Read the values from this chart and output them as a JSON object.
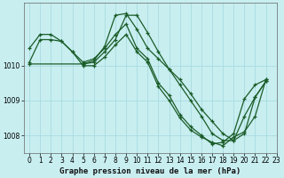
{
  "title": "Graphe pression niveau de la mer (hPa)",
  "bg_color": "#c8eef0",
  "grid_color": "#a8dce0",
  "line_color": "#1a5c28",
  "xlim": [
    -0.5,
    23
  ],
  "ylim": [
    1007.5,
    1011.8
  ],
  "yticks": [
    1008,
    1009,
    1010
  ],
  "xticks": [
    0,
    1,
    2,
    3,
    4,
    5,
    6,
    7,
    8,
    9,
    10,
    11,
    12,
    13,
    14,
    15,
    16,
    17,
    18,
    19,
    20,
    21,
    22,
    23
  ],
  "series": [
    {
      "x": [
        0,
        1,
        2,
        3,
        4,
        5,
        6,
        7,
        8,
        9,
        10,
        11,
        12,
        13,
        14,
        15,
        16,
        17,
        18,
        19,
        20,
        21,
        22
      ],
      "y": [
        1010.5,
        1010.9,
        1010.9,
        1010.7,
        1010.4,
        1010.1,
        1010.2,
        1010.5,
        1010.9,
        1011.2,
        1010.5,
        1010.2,
        1009.5,
        1009.15,
        1008.6,
        1008.25,
        1008.0,
        1007.75,
        1007.8,
        1008.05,
        1009.05,
        1009.45,
        1009.6
      ]
    },
    {
      "x": [
        0,
        1,
        2,
        3,
        4,
        5,
        6,
        7,
        8,
        9,
        10,
        11,
        12,
        13,
        14,
        15,
        16,
        17,
        18,
        19,
        20,
        21,
        22
      ],
      "y": [
        1010.1,
        1010.75,
        1010.75,
        1010.7,
        1010.4,
        1010.0,
        1010.0,
        1010.25,
        1010.6,
        1010.9,
        1010.4,
        1010.1,
        1009.4,
        1009.0,
        1008.5,
        1008.15,
        1007.95,
        1007.8,
        1007.7,
        1007.95,
        1008.1,
        1008.55,
        1009.6
      ]
    },
    {
      "x": [
        5,
        6,
        7,
        8,
        9,
        10,
        11,
        12,
        13,
        14,
        15,
        16,
        17,
        18,
        19,
        20,
        21,
        22
      ],
      "y": [
        1010.05,
        1010.15,
        1010.55,
        1011.45,
        1011.5,
        1011.05,
        1010.5,
        1010.2,
        1009.9,
        1009.6,
        1009.2,
        1008.75,
        1008.4,
        1008.05,
        1007.85,
        1008.55,
        1009.1,
        1009.55
      ]
    },
    {
      "x": [
        0,
        5,
        6,
        7,
        8,
        9,
        10,
        11,
        12,
        13,
        14,
        15,
        16,
        17,
        18,
        19,
        20,
        21,
        22
      ],
      "y": [
        1010.05,
        1010.05,
        1010.1,
        1010.4,
        1010.75,
        1011.45,
        1011.45,
        1010.95,
        1010.4,
        1009.9,
        1009.45,
        1009.0,
        1008.55,
        1008.05,
        1007.85,
        1007.85,
        1008.05,
        1009.1,
        1009.55
      ]
    }
  ],
  "title_fontsize": 6.5,
  "tick_fontsize": 5.5
}
